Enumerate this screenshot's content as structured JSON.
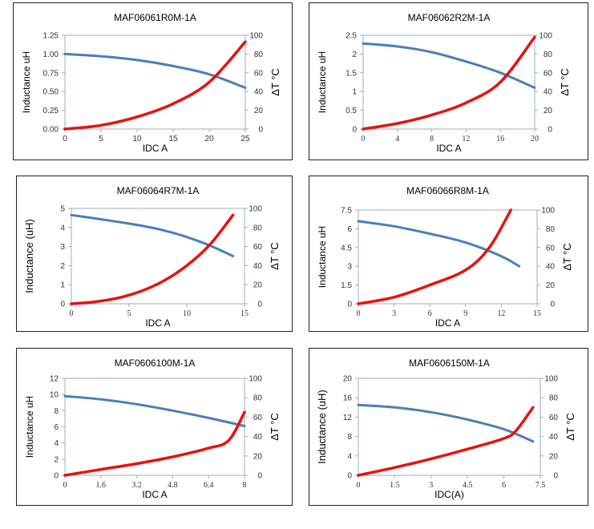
{
  "colors": {
    "inductance": "#4a7ebb",
    "temperature": "#e8110f",
    "axis": "#9dadc4"
  },
  "chart_data": [
    {
      "type": "line",
      "title": "MAF06061R0M-1A",
      "xlabel": "IDC A",
      "ylabel": "Inductance uH",
      "y2label": "ΔT °C",
      "xlim": [
        0,
        25
      ],
      "xticks": [
        "0",
        "5",
        "10",
        "15",
        "20",
        "25"
      ],
      "xtick_values": [
        0,
        5,
        10,
        15,
        20,
        25
      ],
      "ylim": [
        0,
        1.25
      ],
      "yticks": [
        "0.00",
        "0.25",
        "0.50",
        "0.75",
        "1.00",
        "1.25"
      ],
      "y2lim": [
        0,
        100
      ],
      "y2ticks": [
        "0",
        "20",
        "40",
        "60",
        "80",
        "100"
      ],
      "series": [
        {
          "name": "Inductance",
          "axis": "left",
          "x": [
            0,
            5,
            10,
            15,
            20,
            25
          ],
          "y": [
            1.0,
            0.97,
            0.92,
            0.84,
            0.73,
            0.55
          ]
        },
        {
          "name": "Temperature rise",
          "axis": "right",
          "x": [
            0,
            5,
            10,
            15,
            20,
            25
          ],
          "y": [
            0,
            4,
            13,
            27,
            50,
            93
          ]
        }
      ]
    },
    {
      "type": "line",
      "title": "MAF06062R2M-1A",
      "xlabel": "IDC A",
      "ylabel": "Inductance uH",
      "y2label": "ΔT °C",
      "xlim": [
        0,
        20
      ],
      "xticks": [
        "0",
        "4",
        "8",
        "12",
        "16",
        "20"
      ],
      "xtick_values": [
        0,
        4,
        8,
        12,
        16,
        20
      ],
      "ylim": [
        0,
        2.5
      ],
      "yticks": [
        "0",
        "0.5",
        "1",
        "1.5",
        "2",
        "2.5"
      ],
      "y2lim": [
        0,
        100
      ],
      "y2ticks": [
        "0",
        "20",
        "40",
        "60",
        "80",
        "100"
      ],
      "series": [
        {
          "name": "Inductance",
          "axis": "left",
          "x": [
            0,
            4,
            8,
            12,
            16,
            20
          ],
          "y": [
            2.28,
            2.2,
            2.05,
            1.8,
            1.5,
            1.1
          ]
        },
        {
          "name": "Temperature rise",
          "axis": "right",
          "x": [
            0,
            4,
            8,
            12,
            16,
            20
          ],
          "y": [
            0,
            6,
            15,
            28,
            50,
            98
          ]
        }
      ]
    },
    {
      "type": "line",
      "title": "MAF06064R7M-1A",
      "xlabel": "IDC A",
      "ylabel": "Inductance (uH)",
      "y2label": "ΔT °C",
      "xlim": [
        0,
        15
      ],
      "xticks": [
        "0",
        "5",
        "10",
        "15"
      ],
      "xtick_values": [
        0,
        5,
        10,
        15
      ],
      "ylim": [
        0,
        5
      ],
      "yticks": [
        "0",
        "1",
        "2",
        "3",
        "4",
        "5"
      ],
      "y2lim": [
        0,
        100
      ],
      "y2ticks": [
        "0",
        "20",
        "40",
        "60",
        "80",
        "100"
      ],
      "series": [
        {
          "name": "Inductance",
          "axis": "left",
          "x": [
            0,
            2,
            4,
            6,
            8,
            10,
            12,
            14
          ],
          "y": [
            4.65,
            4.48,
            4.3,
            4.1,
            3.85,
            3.5,
            3.05,
            2.5
          ]
        },
        {
          "name": "Temperature rise",
          "axis": "right",
          "x": [
            0,
            2,
            4,
            6,
            8,
            10,
            12,
            14
          ],
          "y": [
            0,
            2,
            6,
            13,
            24,
            40,
            62,
            93
          ]
        }
      ]
    },
    {
      "type": "line",
      "title": "MAF06066R8M-1A",
      "xlabel": "IDC A",
      "ylabel": "Inductance uH",
      "y2label": "ΔT °C",
      "xlim": [
        0,
        15
      ],
      "xticks": [
        "0",
        "3",
        "6",
        "9",
        "12",
        "15"
      ],
      "xtick_values": [
        0,
        3,
        6,
        9,
        12,
        15
      ],
      "ylim": [
        0,
        7.5
      ],
      "yticks": [
        "0",
        "1.5",
        "3",
        "4.5",
        "6",
        "7.5"
      ],
      "y2lim": [
        0,
        100
      ],
      "y2ticks": [
        "0",
        "20",
        "40",
        "60",
        "80",
        "100"
      ],
      "series": [
        {
          "name": "Inductance",
          "axis": "left",
          "x": [
            0,
            3,
            6,
            9,
            12,
            13.5
          ],
          "y": [
            6.6,
            6.2,
            5.6,
            4.9,
            3.8,
            3.0
          ]
        },
        {
          "name": "Temperature rise",
          "axis": "right",
          "x": [
            0,
            3,
            6,
            9,
            11,
            12.8
          ],
          "y": [
            0,
            7,
            20,
            36,
            60,
            100
          ]
        }
      ]
    },
    {
      "type": "line",
      "title": "MAF0606100M-1A",
      "xlabel": "IDC A",
      "ylabel": "Inductance uH",
      "y2label": "ΔT °C",
      "xlim": [
        0,
        8
      ],
      "xticks": [
        "0",
        "1.6",
        "3.2",
        "4.8",
        "6.4",
        "8"
      ],
      "xtick_values": [
        0,
        1.6,
        3.2,
        4.8,
        6.4,
        8
      ],
      "ylim": [
        0,
        12
      ],
      "yticks": [
        "0",
        "2",
        "4",
        "6",
        "8",
        "10",
        "12"
      ],
      "y2lim": [
        0,
        100
      ],
      "y2ticks": [
        "0",
        "20",
        "40",
        "60",
        "80",
        "100"
      ],
      "series": [
        {
          "name": "Inductance",
          "axis": "left",
          "x": [
            0,
            1.6,
            3.2,
            4.8,
            6.4,
            8
          ],
          "y": [
            9.8,
            9.4,
            8.8,
            8.0,
            7.1,
            6.1
          ]
        },
        {
          "name": "Temperature rise",
          "axis": "right",
          "x": [
            0,
            1.6,
            3.2,
            4.8,
            6.4,
            7.3,
            8
          ],
          "y": [
            0,
            6,
            12,
            19,
            28,
            36,
            65
          ]
        }
      ]
    },
    {
      "type": "line",
      "title": "MAF0606150M-1A",
      "xlabel": "IDC(A)",
      "ylabel": "Inductance (uH)",
      "y2label": "ΔT °C",
      "xlim": [
        0,
        7.5
      ],
      "xticks": [
        "0",
        "1.5",
        "3",
        "4.5",
        "6",
        "7.5"
      ],
      "xtick_values": [
        0,
        1.5,
        3,
        4.5,
        6,
        7.5
      ],
      "ylim": [
        0,
        20
      ],
      "yticks": [
        "0",
        "4",
        "8",
        "12",
        "16",
        "20"
      ],
      "y2lim": [
        0,
        100
      ],
      "y2ticks": [
        "0",
        "20",
        "40",
        "60",
        "80",
        "100"
      ],
      "series": [
        {
          "name": "Inductance",
          "axis": "left",
          "x": [
            0,
            1.5,
            3,
            4.5,
            6,
            7.2
          ],
          "y": [
            14.5,
            14.0,
            13.0,
            11.5,
            9.5,
            7.0
          ]
        },
        {
          "name": "Temperature rise",
          "axis": "right",
          "x": [
            0,
            1.5,
            3,
            4.5,
            6,
            6.5,
            7.2
          ],
          "y": [
            0,
            8,
            17,
            27,
            38,
            46,
            70
          ]
        }
      ]
    }
  ]
}
